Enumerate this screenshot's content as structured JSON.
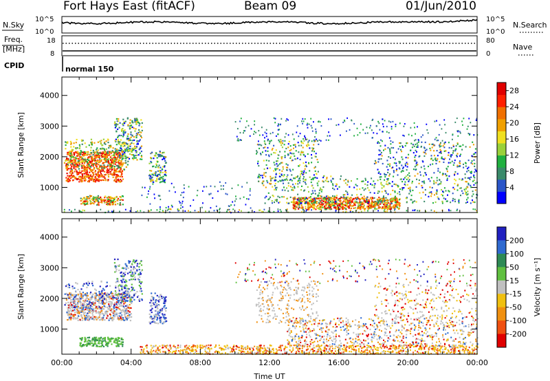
{
  "header": {
    "station": "Fort Hays East (fitACF)",
    "beam": "Beam 09",
    "date": "01/Jun/2010"
  },
  "status": {
    "nsky_label": "N.Sky",
    "nsearch_label": "N.Search",
    "noise_ticks": [
      "10^5",
      "10^0"
    ],
    "freq_label": "Freq.",
    "freq_unit": "[MHz]",
    "freq_ticks": [
      "18",
      "8"
    ],
    "nave_label": "Nave",
    "nave_ticks": [
      "80",
      "0"
    ],
    "cpid_label": "CPID",
    "cpid_value": "normal 150"
  },
  "chart_data": [
    {
      "type": "heatmap",
      "panel": "power",
      "xlabel": "",
      "ylabel": "Slant Range [km]",
      "x_ticks": [
        "00:00",
        "04:00",
        "08:00",
        "12:00",
        "16:00",
        "20:00",
        "00:00"
      ],
      "xlim_hours": [
        0,
        24
      ],
      "y_ticks": [
        1000,
        2000,
        3000,
        4000
      ],
      "ylim_km": [
        180,
        4600
      ],
      "colorbar": {
        "label": "Power [dB]",
        "ticks": [
          4,
          8,
          12,
          16,
          20,
          24,
          28
        ],
        "range": [
          0,
          30
        ],
        "colors": [
          "#0000ff",
          "#2a55c8",
          "#3a8a6a",
          "#20b040",
          "#9ad13a",
          "#f0e020",
          "#f0a000",
          "#f07000",
          "#ff2000",
          "#e00000"
        ]
      }
    },
    {
      "type": "heatmap",
      "panel": "velocity",
      "xlabel": "Time UT",
      "ylabel": "Slant Range [km]",
      "x_ticks": [
        "00:00",
        "04:00",
        "08:00",
        "12:00",
        "16:00",
        "20:00",
        "00:00"
      ],
      "xlim_hours": [
        0,
        24
      ],
      "y_ticks": [
        1000,
        2000,
        3000,
        4000
      ],
      "ylim_km": [
        180,
        4600
      ],
      "colorbar": {
        "label": "Velocity [m s⁻¹]",
        "ticks": [
          "200",
          "100",
          "50",
          "15",
          "-15",
          "-50",
          "-100",
          "-200"
        ],
        "colors": [
          "#2020c0",
          "#2f6ad0",
          "#2e8a55",
          "#60c040",
          "#c0c0c0",
          "#f0c010",
          "#f09010",
          "#f05010",
          "#e00000"
        ]
      }
    }
  ],
  "colors": {
    "ground_scatter": "#c0c0c0",
    "axis": "#000000"
  }
}
